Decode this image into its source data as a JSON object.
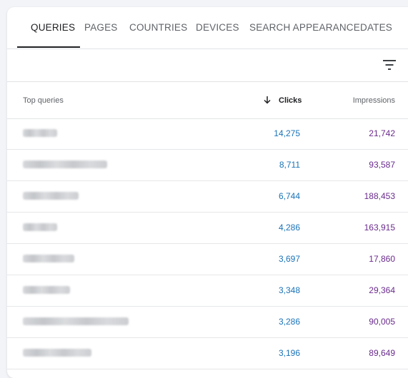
{
  "tabs": [
    {
      "label": "QUERIES"
    },
    {
      "label": "PAGES"
    },
    {
      "label": "COUNTRIES"
    },
    {
      "label": "DEVICES"
    },
    {
      "label": "SEARCH APPEARANCE"
    },
    {
      "label": "DATES"
    }
  ],
  "active_tab": "QUERIES",
  "table": {
    "headers": {
      "query": "Top queries",
      "clicks": "Clicks",
      "impressions": "Impressions"
    },
    "sort": {
      "column": "Clicks",
      "direction": "descending",
      "icon": "arrow-down-icon"
    },
    "rows": [
      {
        "query": "",
        "clicks": "14,275",
        "impressions": "21,742"
      },
      {
        "query": "",
        "clicks": "8,711",
        "impressions": "93,587"
      },
      {
        "query": "",
        "clicks": "6,744",
        "impressions": "188,453"
      },
      {
        "query": "",
        "clicks": "4,286",
        "impressions": "163,915"
      },
      {
        "query": "",
        "clicks": "3,697",
        "impressions": "17,860"
      },
      {
        "query": "",
        "clicks": "3,348",
        "impressions": "29,364"
      },
      {
        "query": "",
        "clicks": "3,286",
        "impressions": "90,005"
      },
      {
        "query": "",
        "clicks": "3,196",
        "impressions": "89,649"
      }
    ]
  },
  "colors": {
    "clicks": "#1a73b8",
    "impressions": "#6a2b8c",
    "active_tab_indicator": "#202124"
  },
  "icons": {
    "filter": "filter-icon",
    "sort": "arrow-down-icon"
  }
}
